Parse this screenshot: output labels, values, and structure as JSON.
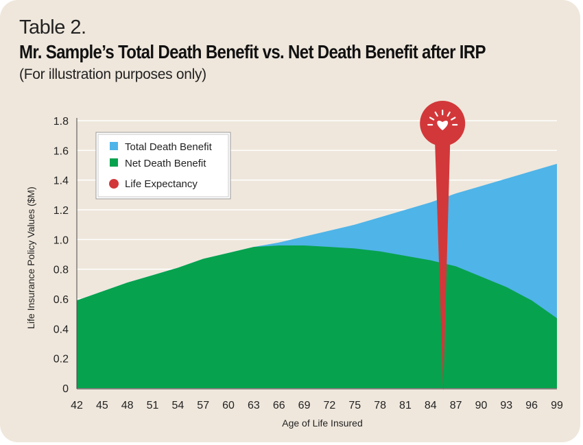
{
  "header": {
    "label": "Table 2.",
    "title": "Mr. Sample’s Total Death Benefit vs. Net Death Benefit after IRP",
    "subtitle": "(For illustration purposes only)"
  },
  "chart_data": {
    "type": "area",
    "title": "Mr. Sample’s Total Death Benefit vs. Net Death Benefit after IRP",
    "xlabel": "Age of Life Insured",
    "ylabel": "Life Insurance Policy Values ($M)",
    "xlim": [
      42,
      99
    ],
    "ylim": [
      0,
      1.8
    ],
    "x_ticks": [
      42,
      45,
      48,
      51,
      54,
      57,
      60,
      63,
      66,
      69,
      72,
      75,
      78,
      81,
      84,
      87,
      90,
      93,
      96,
      99
    ],
    "y_ticks": [
      "0",
      "0.2",
      "0.4",
      "0.6",
      "0.8",
      "1.0",
      "1.2",
      "1.4",
      "1.6",
      "1.8"
    ],
    "grid": true,
    "legend_position": "top-left",
    "series": [
      {
        "name": "Total Death Benefit",
        "color": "#4fb4e8",
        "x": [
          42,
          45,
          48,
          51,
          54,
          57,
          60,
          63,
          66,
          69,
          72,
          75,
          78,
          81,
          84,
          87,
          90,
          93,
          96,
          99
        ],
        "values": [
          0.59,
          0.65,
          0.71,
          0.76,
          0.81,
          0.87,
          0.91,
          0.95,
          0.98,
          1.02,
          1.06,
          1.1,
          1.15,
          1.2,
          1.25,
          1.31,
          1.36,
          1.41,
          1.46,
          1.51
        ]
      },
      {
        "name": "Net Death Benefit",
        "color": "#07a24e",
        "x": [
          42,
          45,
          48,
          51,
          54,
          57,
          60,
          63,
          66,
          69,
          72,
          75,
          78,
          81,
          84,
          87,
          90,
          93,
          96,
          99
        ],
        "values": [
          0.59,
          0.65,
          0.71,
          0.76,
          0.81,
          0.87,
          0.91,
          0.95,
          0.96,
          0.96,
          0.95,
          0.94,
          0.92,
          0.89,
          0.86,
          0.82,
          0.75,
          0.68,
          0.59,
          0.47
        ]
      }
    ],
    "markers": [
      {
        "name": "Life Expectancy",
        "x": 85.5,
        "color": "#d2383a",
        "icon": "heart-icon"
      }
    ],
    "legend": [
      "Total Death Benefit",
      "Net Death Benefit",
      "Life Expectancy"
    ]
  }
}
